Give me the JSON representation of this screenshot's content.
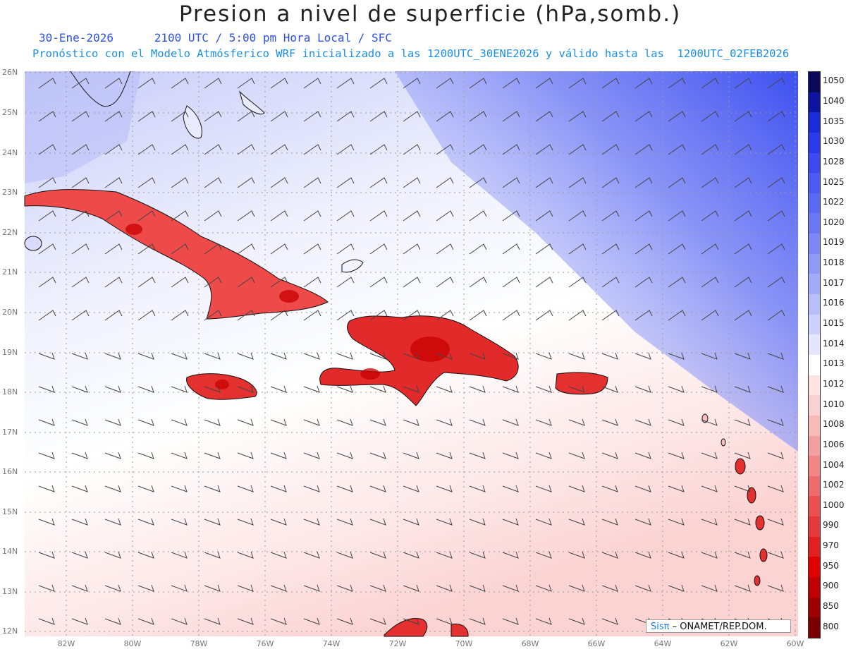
{
  "header": {
    "title": "Presion a nivel de superficie (hPa,somb.)",
    "date": "30-Ene-2026",
    "time_info": "2100 UTC / 5:00 pm Hora Local / SFC",
    "model_info": "Pronóstico con el Modelo Atmósferico WRF inicializado a las 1200UTC_30ENE2026 y válido hasta las  1200UTC_02FEB2026"
  },
  "map": {
    "lat_labels": [
      "26N",
      "25N",
      "24N",
      "23N",
      "22N",
      "21N",
      "20N",
      "19N",
      "18N",
      "17N",
      "16N",
      "15N",
      "14N",
      "13N",
      "12N"
    ],
    "lon_labels": [
      "82W",
      "80W",
      "78W",
      "76W",
      "74W",
      "72W",
      "70W",
      "68W",
      "66W",
      "64W",
      "62W",
      "60W"
    ],
    "region": "Caribe / Antillas Mayores",
    "variable": "presión a nivel de superficie + barbas de viento"
  },
  "legend": {
    "values": [
      "1050",
      "1040",
      "1035",
      "1030",
      "1028",
      "1025",
      "1022",
      "1020",
      "1019",
      "1018",
      "1017",
      "1016",
      "1015",
      "1014",
      "1013",
      "1012",
      "1010",
      "1008",
      "1006",
      "1004",
      "1002",
      "1000",
      "990",
      "970",
      "950",
      "900",
      "850",
      "800"
    ],
    "colors": [
      "#0a0a5a",
      "#0d14a0",
      "#1a2bd8",
      "#2a3ae8",
      "#3a4af0",
      "#4b5af2",
      "#5b69f4",
      "#6b78f5",
      "#7d88f6",
      "#909af7",
      "#a3abf8",
      "#b8bef9",
      "#cdd1fb",
      "#e4e6fd",
      "#ffffff",
      "#fde3e3",
      "#fbd0d0",
      "#f8b9b9",
      "#f5a0a0",
      "#f28585",
      "#ee6b6b",
      "#ea5050",
      "#e63a3a",
      "#e22020",
      "#e00000",
      "#c00000",
      "#a00000",
      "#7a0000"
    ]
  },
  "credit": {
    "brand": "Sisπ",
    "text": " – ONAMET/REP.DOM."
  }
}
